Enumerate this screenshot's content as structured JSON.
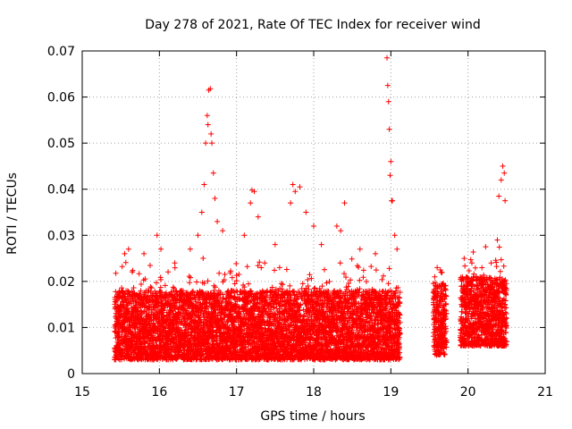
{
  "chart_data": {
    "type": "scatter",
    "title": "Day 278 of 2021, Rate Of TEC Index for receiver wind",
    "xlabel": "GPS time / hours",
    "ylabel": "ROTI / TECUs",
    "xlim": [
      15,
      21
    ],
    "ylim": [
      0,
      0.07
    ],
    "grid": true,
    "x_ticks": [
      15,
      16,
      17,
      18,
      19,
      20,
      21
    ],
    "x_tick_labels": [
      "15",
      "16",
      "17",
      "18",
      "19",
      "20",
      "21"
    ],
    "y_ticks": [
      0,
      0.01,
      0.02,
      0.03,
      0.04,
      0.05,
      0.06,
      0.07
    ],
    "y_tick_labels": [
      "0",
      "0.01",
      "0.02",
      "0.03",
      "0.04",
      "0.05",
      "0.06",
      "0.07"
    ],
    "marker": "+",
    "marker_color": "#ff0000",
    "series": [
      {
        "name": "ROTI",
        "segments": [
          {
            "x_start": 15.42,
            "x_end": 19.12,
            "base_min": 0.003,
            "base_max": 0.018
          },
          {
            "x_start": 19.55,
            "x_end": 19.72,
            "base_min": 0.004,
            "base_max": 0.02
          },
          {
            "x_start": 19.9,
            "x_end": 20.5,
            "base_min": 0.006,
            "base_max": 0.021
          }
        ],
        "highlights": [
          {
            "x": 15.55,
            "y": 0.026
          },
          {
            "x": 15.6,
            "y": 0.027
          },
          {
            "x": 15.8,
            "y": 0.026
          },
          {
            "x": 15.97,
            "y": 0.03
          },
          {
            "x": 16.02,
            "y": 0.027
          },
          {
            "x": 16.2,
            "y": 0.024
          },
          {
            "x": 16.4,
            "y": 0.027
          },
          {
            "x": 16.5,
            "y": 0.03
          },
          {
            "x": 16.55,
            "y": 0.035
          },
          {
            "x": 16.58,
            "y": 0.041
          },
          {
            "x": 16.6,
            "y": 0.05
          },
          {
            "x": 16.62,
            "y": 0.056
          },
          {
            "x": 16.63,
            "y": 0.054
          },
          {
            "x": 16.64,
            "y": 0.0615
          },
          {
            "x": 16.66,
            "y": 0.0618
          },
          {
            "x": 16.67,
            "y": 0.052
          },
          {
            "x": 16.68,
            "y": 0.05
          },
          {
            "x": 16.7,
            "y": 0.0435
          },
          {
            "x": 16.72,
            "y": 0.038
          },
          {
            "x": 16.75,
            "y": 0.033
          },
          {
            "x": 16.82,
            "y": 0.031
          },
          {
            "x": 17.1,
            "y": 0.03
          },
          {
            "x": 17.18,
            "y": 0.037
          },
          {
            "x": 17.2,
            "y": 0.0398
          },
          {
            "x": 17.23,
            "y": 0.0395
          },
          {
            "x": 17.28,
            "y": 0.034
          },
          {
            "x": 17.5,
            "y": 0.028
          },
          {
            "x": 17.7,
            "y": 0.037
          },
          {
            "x": 17.73,
            "y": 0.041
          },
          {
            "x": 17.76,
            "y": 0.0395
          },
          {
            "x": 17.82,
            "y": 0.0405
          },
          {
            "x": 17.9,
            "y": 0.035
          },
          {
            "x": 18.0,
            "y": 0.032
          },
          {
            "x": 18.1,
            "y": 0.028
          },
          {
            "x": 18.3,
            "y": 0.032
          },
          {
            "x": 18.35,
            "y": 0.031
          },
          {
            "x": 18.4,
            "y": 0.037
          },
          {
            "x": 18.6,
            "y": 0.027
          },
          {
            "x": 18.8,
            "y": 0.026
          },
          {
            "x": 18.95,
            "y": 0.0685
          },
          {
            "x": 18.96,
            "y": 0.0625
          },
          {
            "x": 18.97,
            "y": 0.059
          },
          {
            "x": 18.98,
            "y": 0.053
          },
          {
            "x": 18.99,
            "y": 0.043
          },
          {
            "x": 19.0,
            "y": 0.046
          },
          {
            "x": 19.01,
            "y": 0.0375
          },
          {
            "x": 19.02,
            "y": 0.0375
          },
          {
            "x": 19.05,
            "y": 0.03
          },
          {
            "x": 19.08,
            "y": 0.027
          },
          {
            "x": 19.6,
            "y": 0.023
          },
          {
            "x": 19.65,
            "y": 0.022
          },
          {
            "x": 19.95,
            "y": 0.025
          },
          {
            "x": 20.05,
            "y": 0.024
          },
          {
            "x": 20.3,
            "y": 0.024
          },
          {
            "x": 20.38,
            "y": 0.029
          },
          {
            "x": 20.4,
            "y": 0.0385
          },
          {
            "x": 20.43,
            "y": 0.042
          },
          {
            "x": 20.45,
            "y": 0.045
          },
          {
            "x": 20.47,
            "y": 0.0435
          },
          {
            "x": 20.48,
            "y": 0.0375
          }
        ]
      }
    ]
  }
}
